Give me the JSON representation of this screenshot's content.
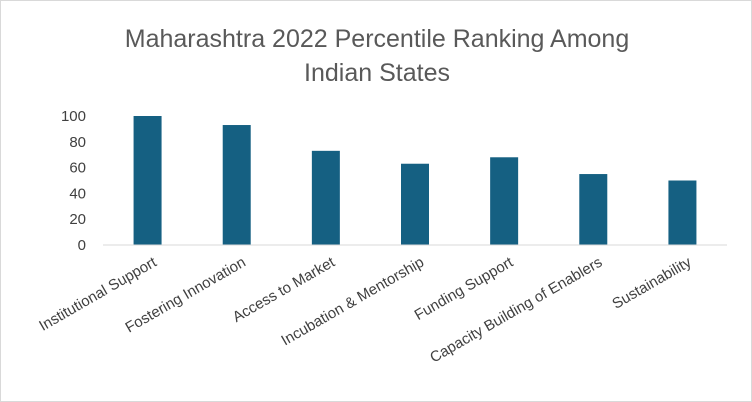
{
  "chart_data": {
    "type": "bar",
    "title_lines": [
      "Maharashtra 2022 Percentile Ranking Among",
      "Indian States"
    ],
    "categories": [
      "Institutional Support",
      "Fostering Innovation",
      "Access to Market",
      "Incubation & Mentorship",
      "Funding Support",
      "Capacity Building of Enablers",
      "Sustainability"
    ],
    "values": [
      100,
      93,
      73,
      63,
      68,
      55,
      50
    ],
    "ylim": [
      0,
      100
    ],
    "yticks": [
      "0",
      "20",
      "40",
      "60",
      "80",
      "100"
    ],
    "grid": false,
    "bar_color": "#156082",
    "axis_color": "#d9d9d9"
  }
}
